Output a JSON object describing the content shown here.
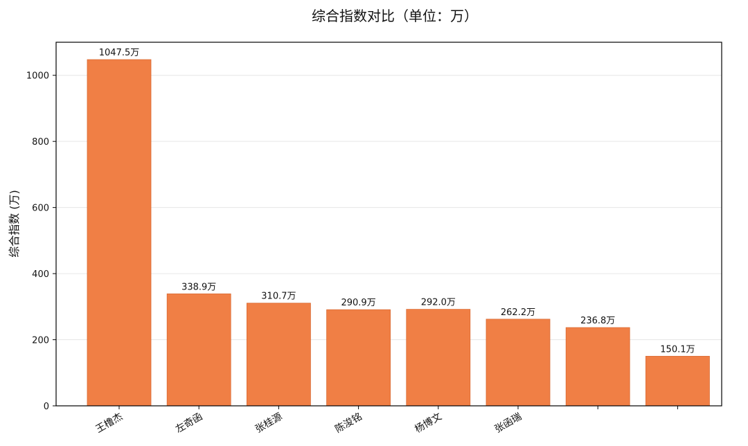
{
  "chart_data": {
    "type": "bar",
    "title": "综合指数对比（单位：万）",
    "xlabel": "",
    "ylabel": "综合指数 (万)",
    "categories": [
      "王橹杰",
      "左奇函",
      "张桂源",
      "陈浚铭",
      "杨博文",
      "张函瑞",
      "",
      ""
    ],
    "values": [
      1047.5,
      338.9,
      310.7,
      290.9,
      292.0,
      262.2,
      236.8,
      150.1
    ],
    "data_labels": [
      "1047.5万",
      "338.9万",
      "310.7万",
      "290.9万",
      "292.0万",
      "262.2万",
      "236.8万",
      "150.1万"
    ],
    "ylim": [
      0,
      1100
    ],
    "yticks": [
      0,
      200,
      400,
      600,
      800,
      1000
    ],
    "grid": true,
    "bar_color": "#f07f45",
    "bar_edge_color": "#d96a32"
  }
}
